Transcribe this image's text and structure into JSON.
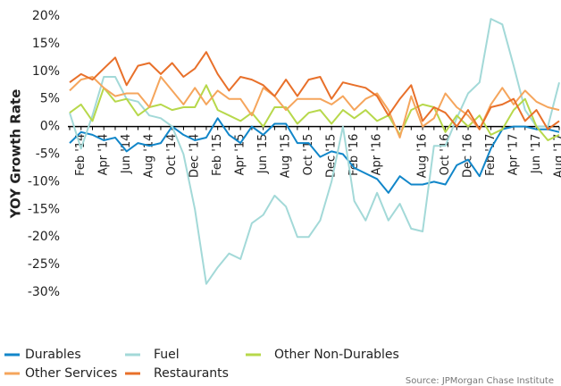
{
  "chart_data": {
    "type": "line",
    "y_label": "YOY Growth Rate",
    "source": "Source:  JPMorgan Chase Institute",
    "categories": [
      null,
      "Feb '14",
      null,
      "Apr '14",
      null,
      "Jun '14",
      null,
      "Aug '14",
      null,
      "Oct '14",
      null,
      "Dec '14",
      null,
      "Feb '15",
      null,
      "Apr '15",
      null,
      "Jun '15",
      null,
      "Aug '15",
      null,
      "Oct '15",
      null,
      "Dec '15",
      null,
      "Feb '16",
      null,
      "Apr '16",
      null,
      null,
      null,
      "Aug '16",
      null,
      "Oct '16",
      null,
      "Dec '16",
      null,
      "Feb '17",
      null,
      "Apr '17",
      null,
      "Jun '17",
      null,
      "Aug '17"
    ],
    "series": [
      {
        "name": "Durables",
        "color": "#1186c9",
        "values": [
          -3,
          -1,
          -1.5,
          -2.5,
          -2,
          -4.5,
          -3,
          -3.5,
          -3,
          0,
          -1.5,
          -2.5,
          -2,
          1.5,
          -1.5,
          -3,
          0,
          -1.5,
          0.5,
          0.5,
          -3,
          -3,
          -5.5,
          -4.5,
          -5,
          -7.5,
          -8.5,
          -9.5,
          -12,
          -9,
          -10.5,
          -10.5,
          -10,
          -10.5,
          -7,
          -6,
          -9,
          -4,
          -0.5,
          0,
          0,
          -0.5,
          -0.5,
          -1
        ]
      },
      {
        "name": "Fuel",
        "color": "#a3d9d8",
        "values": [
          2.5,
          -4,
          2,
          9,
          9,
          5,
          4.5,
          2,
          1.5,
          0,
          -5,
          -15,
          -28.5,
          -25.5,
          -23,
          -24,
          -17.5,
          -16,
          -12.5,
          -14.5,
          -20,
          -20,
          -17,
          -10,
          0,
          -13.5,
          -17,
          -12,
          -17,
          -14,
          -18.5,
          -19,
          -3.5,
          -3.5,
          1.5,
          6,
          8,
          19.5,
          18.5,
          11,
          3,
          0,
          0,
          8
        ]
      },
      {
        "name": "Other Non-Durables",
        "color": "#b7d84b",
        "values": [
          2.5,
          4,
          1,
          7,
          4.5,
          5,
          2,
          3.5,
          4,
          3,
          3.5,
          3.5,
          7.5,
          3,
          2,
          1,
          2.5,
          0,
          3.5,
          3.5,
          0.5,
          2.5,
          3,
          0.5,
          3,
          1.5,
          3,
          1,
          2,
          -1.5,
          3,
          4,
          3.5,
          -1,
          2,
          0,
          2,
          -1.5,
          -0.5,
          3,
          5,
          0,
          -2.5,
          -1.5
        ]
      },
      {
        "name": "Other Services",
        "color": "#f5a55c",
        "values": [
          6.5,
          8.5,
          9,
          7,
          5.5,
          6,
          6,
          3.5,
          9,
          6.5,
          4,
          7,
          4,
          6.5,
          5,
          5,
          2,
          7,
          5.5,
          3,
          5,
          5,
          5,
          4,
          5.5,
          3,
          5,
          6,
          3,
          -2,
          5.5,
          0,
          1.5,
          6,
          3.5,
          2,
          -0.5,
          4,
          7,
          4,
          6.5,
          4.5,
          3.5,
          3
        ]
      },
      {
        "name": "Restaurants",
        "color": "#e8702a",
        "values": [
          8,
          9.5,
          8.5,
          10.5,
          12.5,
          7.5,
          11,
          11.5,
          9.5,
          11.5,
          9,
          10.5,
          13.5,
          9.5,
          6.5,
          9,
          8.5,
          7.5,
          5.5,
          8.5,
          5.5,
          8.5,
          9,
          5,
          8,
          7.5,
          7,
          5.5,
          2,
          5,
          7.5,
          1,
          3.5,
          2.5,
          0,
          3,
          -0.5,
          3.5,
          4,
          5,
          1,
          3,
          -0.5,
          1
        ]
      }
    ],
    "ylim": [
      -30,
      20
    ],
    "yticks": [
      {
        "value": -30,
        "label": "-30%"
      },
      {
        "value": -25,
        "label": "-25%"
      },
      {
        "value": -20,
        "label": "-20%"
      },
      {
        "value": -15,
        "label": "-15%"
      },
      {
        "value": -10,
        "label": "-10%"
      },
      {
        "value": -5,
        "label": "-5%"
      },
      {
        "value": 0,
        "label": "0%"
      },
      {
        "value": 5,
        "label": "5%"
      },
      {
        "value": 10,
        "label": "10%"
      },
      {
        "value": 15,
        "label": "15%"
      },
      {
        "value": 20,
        "label": "20%"
      }
    ],
    "grid": false
  }
}
